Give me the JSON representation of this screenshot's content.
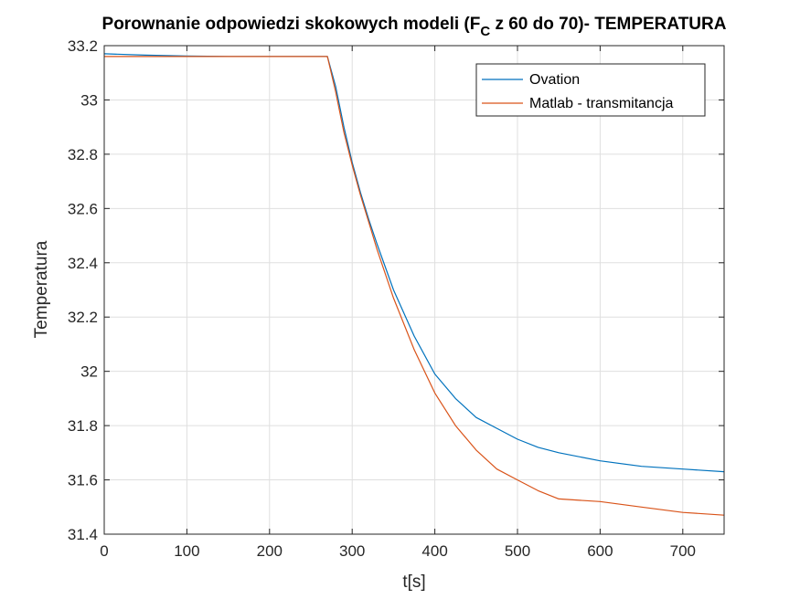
{
  "chart_data": {
    "type": "line",
    "title_main": "Porownanie odpowiedzi skokowych modeli (F",
    "title_sub": "C",
    "title_rest": " z 60 do 70)- TEMPERATURA",
    "xlabel": "t[s]",
    "ylabel": "Temperatura",
    "xlim": [
      0,
      750
    ],
    "ylim": [
      31.4,
      33.2
    ],
    "xticks": [
      0,
      100,
      200,
      300,
      400,
      500,
      600,
      700
    ],
    "yticks": [
      31.4,
      31.6,
      31.8,
      32,
      32.2,
      32.4,
      32.6,
      32.8,
      33,
      33.2
    ],
    "grid": true,
    "legend_position": "top-right",
    "series": [
      {
        "name": "Ovation",
        "color": "#0072BD",
        "x": [
          0,
          50,
          100,
          150,
          200,
          250,
          270,
          280,
          290,
          300,
          310,
          320,
          330,
          350,
          375,
          400,
          425,
          450,
          475,
          500,
          525,
          550,
          600,
          650,
          700,
          750
        ],
        "y": [
          33.17,
          33.165,
          33.162,
          33.16,
          33.16,
          33.16,
          33.16,
          33.05,
          32.9,
          32.77,
          32.66,
          32.56,
          32.47,
          32.3,
          32.13,
          31.99,
          31.9,
          31.83,
          31.79,
          31.75,
          31.72,
          31.7,
          31.67,
          31.65,
          31.64,
          31.63
        ]
      },
      {
        "name": "Matlab - transmitancja",
        "color": "#D95319",
        "x": [
          0,
          50,
          100,
          150,
          200,
          250,
          265,
          270,
          280,
          290,
          300,
          310,
          320,
          330,
          350,
          375,
          400,
          425,
          450,
          475,
          500,
          525,
          550,
          600,
          650,
          700,
          750
        ],
        "y": [
          33.16,
          33.16,
          33.16,
          33.16,
          33.16,
          33.16,
          33.16,
          33.16,
          33.03,
          32.88,
          32.76,
          32.65,
          32.55,
          32.45,
          32.27,
          32.08,
          31.92,
          31.8,
          31.71,
          31.64,
          31.6,
          31.56,
          31.53,
          31.52,
          31.5,
          31.48,
          31.47
        ]
      }
    ]
  }
}
